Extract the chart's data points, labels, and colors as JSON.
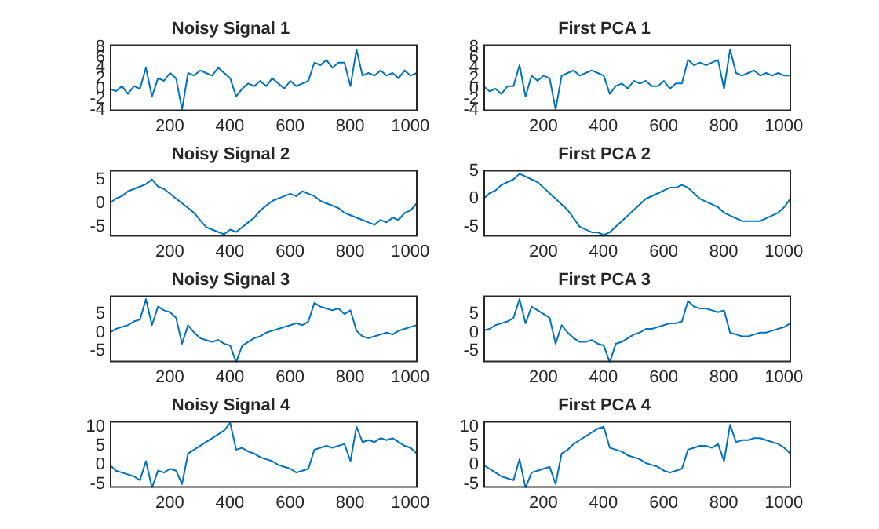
{
  "chart_data": [
    {
      "type": "line",
      "title": "Noisy Signal 1",
      "x": [
        1,
        21,
        41,
        61,
        81,
        101,
        121,
        141,
        161,
        181,
        201,
        221,
        241,
        261,
        281,
        301,
        321,
        341,
        361,
        381,
        401,
        421,
        441,
        461,
        481,
        501,
        521,
        541,
        561,
        581,
        601,
        621,
        641,
        661,
        681,
        701,
        721,
        741,
        761,
        781,
        801,
        821,
        841,
        861,
        881,
        901,
        921,
        941,
        961,
        981,
        1001,
        1021
      ],
      "xlim": [
        1,
        1024
      ],
      "xticks": [
        200,
        400,
        600,
        800,
        1000
      ],
      "ylim": [
        -4.3,
        8.5
      ],
      "yticks": [
        -4,
        -2,
        0,
        2,
        4,
        6,
        8
      ],
      "series": [
        {
          "color": "#0072bd",
          "values": [
            0,
            -0.5,
            0.5,
            -1,
            0.5,
            0,
            4,
            -1.5,
            2,
            1.5,
            3,
            2,
            -4,
            3,
            2.5,
            3.5,
            3,
            2.5,
            4,
            3,
            2,
            -1.5,
            0,
            1,
            0.5,
            1.5,
            0.5,
            2,
            1,
            0,
            1.5,
            0.5,
            1,
            1.5,
            5,
            4.5,
            5.5,
            4,
            5,
            5,
            0.5,
            7.5,
            2.5,
            3,
            2.5,
            3.5,
            2.5,
            3,
            2,
            3.5,
            2.5,
            3
          ]
        }
      ]
    },
    {
      "type": "line",
      "title": "First PCA 1",
      "x": [
        1,
        21,
        41,
        61,
        81,
        101,
        121,
        141,
        161,
        181,
        201,
        221,
        241,
        261,
        281,
        301,
        321,
        341,
        361,
        381,
        401,
        421,
        441,
        461,
        481,
        501,
        521,
        541,
        561,
        581,
        601,
        621,
        641,
        661,
        681,
        701,
        721,
        741,
        761,
        781,
        801,
        821,
        841,
        861,
        881,
        901,
        921,
        941,
        961,
        981,
        1001,
        1021
      ],
      "xlim": [
        1,
        1024
      ],
      "xticks": [
        200,
        400,
        600,
        800,
        1000
      ],
      "ylim": [
        -4.3,
        8.5
      ],
      "yticks": [
        -4,
        -2,
        0,
        2,
        4,
        6,
        8
      ],
      "series": [
        {
          "color": "#0072bd",
          "values": [
            0.5,
            -0.5,
            0,
            -1,
            0.5,
            0.5,
            4.5,
            -1.5,
            2.5,
            1.5,
            2.5,
            2,
            -4,
            2.5,
            3,
            3.5,
            2.5,
            3,
            3.5,
            3,
            2.5,
            -1,
            0.5,
            1,
            0,
            1.5,
            1,
            1.5,
            0.5,
            0.5,
            1.5,
            0,
            1,
            1,
            5.5,
            4.5,
            5,
            4.5,
            5,
            5.5,
            0,
            7.5,
            3,
            2.5,
            3,
            3.5,
            2.5,
            3,
            2.5,
            3,
            2.5,
            2.5
          ]
        }
      ]
    },
    {
      "type": "line",
      "title": "Noisy Signal 2",
      "x": [
        1,
        21,
        41,
        61,
        81,
        101,
        121,
        141,
        161,
        181,
        201,
        221,
        241,
        261,
        281,
        301,
        321,
        341,
        361,
        381,
        401,
        421,
        441,
        461,
        481,
        501,
        521,
        541,
        561,
        581,
        601,
        621,
        641,
        661,
        681,
        701,
        721,
        741,
        761,
        781,
        801,
        821,
        841,
        861,
        881,
        901,
        921,
        941,
        961,
        981,
        1001,
        1021
      ],
      "xlim": [
        1,
        1024
      ],
      "xticks": [
        200,
        400,
        600,
        800,
        1000
      ],
      "ylim": [
        -7,
        7
      ],
      "yticks": [
        -5,
        0,
        5
      ],
      "series": [
        {
          "color": "#0072bd",
          "values": [
            0,
            1,
            1.5,
            2.5,
            3,
            3.5,
            4,
            5,
            3.5,
            3,
            2,
            1,
            0,
            -1,
            -2,
            -3.5,
            -5,
            -5.5,
            -6,
            -6.5,
            -5.5,
            -6,
            -5,
            -4,
            -3,
            -1.5,
            -0.5,
            0.5,
            1,
            1.5,
            2,
            1.5,
            2.5,
            2,
            1.5,
            0.5,
            0,
            -0.5,
            -1,
            -2,
            -2.5,
            -3,
            -3.5,
            -4,
            -4.5,
            -3.5,
            -4,
            -3,
            -3.5,
            -2,
            -1.5,
            0
          ]
        }
      ]
    },
    {
      "type": "line",
      "title": "First PCA 2",
      "x": [
        1,
        21,
        41,
        61,
        81,
        101,
        121,
        141,
        161,
        181,
        201,
        221,
        241,
        261,
        281,
        301,
        321,
        341,
        361,
        381,
        401,
        421,
        441,
        461,
        481,
        501,
        521,
        541,
        561,
        581,
        601,
        621,
        641,
        661,
        681,
        701,
        721,
        741,
        761,
        781,
        801,
        821,
        841,
        861,
        881,
        901,
        921,
        941,
        961,
        981,
        1001,
        1021
      ],
      "xlim": [
        1,
        1024
      ],
      "xticks": [
        200,
        400,
        600,
        800,
        1000
      ],
      "ylim": [
        -6.8,
        5.2
      ],
      "yticks": [
        -5,
        0,
        5
      ],
      "series": [
        {
          "color": "#0072bd",
          "values": [
            0,
            1,
            1.5,
            2.5,
            3,
            3.5,
            4.5,
            4,
            3.5,
            3,
            2,
            1,
            0,
            -1,
            -2,
            -3.5,
            -5,
            -5.5,
            -6,
            -6,
            -6.5,
            -6,
            -5,
            -4,
            -3,
            -2,
            -1,
            0,
            0.5,
            1,
            1.5,
            2,
            2,
            2.5,
            2,
            1,
            0,
            -0.5,
            -1,
            -1.5,
            -2.5,
            -3,
            -3.5,
            -4,
            -4,
            -4,
            -4,
            -3.5,
            -3,
            -2.5,
            -1.5,
            0
          ]
        }
      ]
    },
    {
      "type": "line",
      "title": "Noisy Signal 3",
      "x": [
        1,
        21,
        41,
        61,
        81,
        101,
        121,
        141,
        161,
        181,
        201,
        221,
        241,
        261,
        281,
        301,
        321,
        341,
        361,
        381,
        401,
        421,
        441,
        461,
        481,
        501,
        521,
        541,
        561,
        581,
        601,
        621,
        641,
        661,
        681,
        701,
        721,
        741,
        761,
        781,
        801,
        821,
        841,
        861,
        881,
        901,
        921,
        941,
        961,
        981,
        1001,
        1021
      ],
      "xlim": [
        1,
        1024
      ],
      "xticks": [
        200,
        400,
        600,
        800,
        1000
      ],
      "ylim": [
        -8,
        10
      ],
      "yticks": [
        -5,
        0,
        5
      ],
      "series": [
        {
          "color": "#0072bd",
          "values": [
            0,
            1,
            1.5,
            2,
            3,
            3.5,
            9,
            2,
            7,
            6,
            5.5,
            4,
            -3,
            2,
            0,
            -1.5,
            -2,
            -2.5,
            -2,
            -3,
            -3.5,
            -8,
            -3.5,
            -2.5,
            -1.5,
            -1,
            0,
            0.5,
            1,
            1.5,
            2,
            2.5,
            2,
            3,
            8,
            7,
            6.5,
            6,
            6.5,
            5,
            6,
            0.5,
            -1,
            -1.5,
            -1,
            -0.5,
            0,
            -0.5,
            0.5,
            1,
            1.5,
            2
          ]
        }
      ]
    },
    {
      "type": "line",
      "title": "First PCA 3",
      "x": [
        1,
        21,
        41,
        61,
        81,
        101,
        121,
        141,
        161,
        181,
        201,
        221,
        241,
        261,
        281,
        301,
        321,
        341,
        361,
        381,
        401,
        421,
        441,
        461,
        481,
        501,
        521,
        541,
        561,
        581,
        601,
        621,
        641,
        661,
        681,
        701,
        721,
        741,
        761,
        781,
        801,
        821,
        841,
        861,
        881,
        901,
        921,
        941,
        961,
        981,
        1001,
        1021
      ],
      "xlim": [
        1,
        1024
      ],
      "xticks": [
        200,
        400,
        600,
        800,
        1000
      ],
      "ylim": [
        -8,
        10
      ],
      "yticks": [
        -5,
        0,
        5
      ],
      "series": [
        {
          "color": "#0072bd",
          "values": [
            0.5,
            1,
            2,
            2.5,
            3,
            4,
            9,
            2.5,
            7,
            6,
            5,
            4,
            -3,
            2,
            0,
            -1.5,
            -2.5,
            -2.5,
            -2,
            -3,
            -3.5,
            -8,
            -3,
            -2.5,
            -1.5,
            -0.5,
            0,
            1,
            1,
            1.5,
            2,
            2.5,
            2.5,
            3,
            8.5,
            7,
            6.5,
            6.5,
            6,
            5.5,
            6,
            0,
            -0.5,
            -1,
            -1,
            -0.5,
            0,
            0,
            0.5,
            1,
            1.5,
            2.5
          ]
        }
      ]
    },
    {
      "type": "line",
      "title": "Noisy Signal 4",
      "x": [
        1,
        21,
        41,
        61,
        81,
        101,
        121,
        141,
        161,
        181,
        201,
        221,
        241,
        261,
        281,
        301,
        321,
        341,
        361,
        381,
        401,
        421,
        441,
        461,
        481,
        501,
        521,
        541,
        561,
        581,
        601,
        621,
        641,
        661,
        681,
        701,
        721,
        741,
        761,
        781,
        801,
        821,
        841,
        861,
        881,
        901,
        921,
        941,
        961,
        981,
        1001,
        1021
      ],
      "xlim": [
        1,
        1024
      ],
      "xticks": [
        200,
        400,
        600,
        800,
        1000
      ],
      "ylim": [
        -6,
        11.5
      ],
      "yticks": [
        -5,
        0,
        5,
        10
      ],
      "series": [
        {
          "color": "#0072bd",
          "values": [
            0,
            -1.5,
            -2,
            -2.5,
            -3,
            -4,
            1,
            -6,
            -1.5,
            -2,
            -1,
            -1.5,
            -5,
            3,
            4,
            5,
            6,
            7,
            8,
            9,
            11,
            4,
            4.5,
            3.5,
            3,
            2,
            1.5,
            1,
            0,
            -0.5,
            -1,
            -2,
            -1.5,
            -1,
            4,
            4.5,
            5,
            4.5,
            5,
            5.5,
            1,
            10,
            6,
            6.5,
            6,
            7,
            6.5,
            7,
            6,
            5,
            4.5,
            3
          ]
        }
      ]
    },
    {
      "type": "line",
      "title": "First PCA 4",
      "x": [
        1,
        21,
        41,
        61,
        81,
        101,
        121,
        141,
        161,
        181,
        201,
        221,
        241,
        261,
        281,
        301,
        321,
        341,
        361,
        381,
        401,
        421,
        441,
        461,
        481,
        501,
        521,
        541,
        561,
        581,
        601,
        621,
        641,
        661,
        681,
        701,
        721,
        741,
        761,
        781,
        801,
        821,
        841,
        861,
        881,
        901,
        921,
        941,
        961,
        981,
        1001,
        1021
      ],
      "xlim": [
        1,
        1024
      ],
      "xticks": [
        200,
        400,
        600,
        800,
        1000
      ],
      "ylim": [
        -6,
        11.5
      ],
      "yticks": [
        -5,
        0,
        5,
        10
      ],
      "series": [
        {
          "color": "#0072bd",
          "values": [
            0,
            -1,
            -2,
            -3,
            -3.5,
            -4,
            1.5,
            -6,
            -2,
            -1.5,
            -1,
            -0.5,
            -5,
            3,
            4,
            5.5,
            6.5,
            7.5,
            8.5,
            9.5,
            10,
            4.5,
            4,
            3.5,
            2.5,
            2,
            1.5,
            0.5,
            0,
            -0.5,
            -1.5,
            -2,
            -1.5,
            -1,
            4,
            4.5,
            5,
            5,
            4.5,
            5.5,
            1,
            10.5,
            6,
            6.5,
            6.5,
            7,
            7,
            6.5,
            6,
            5.5,
            4.5,
            3
          ]
        }
      ]
    }
  ]
}
